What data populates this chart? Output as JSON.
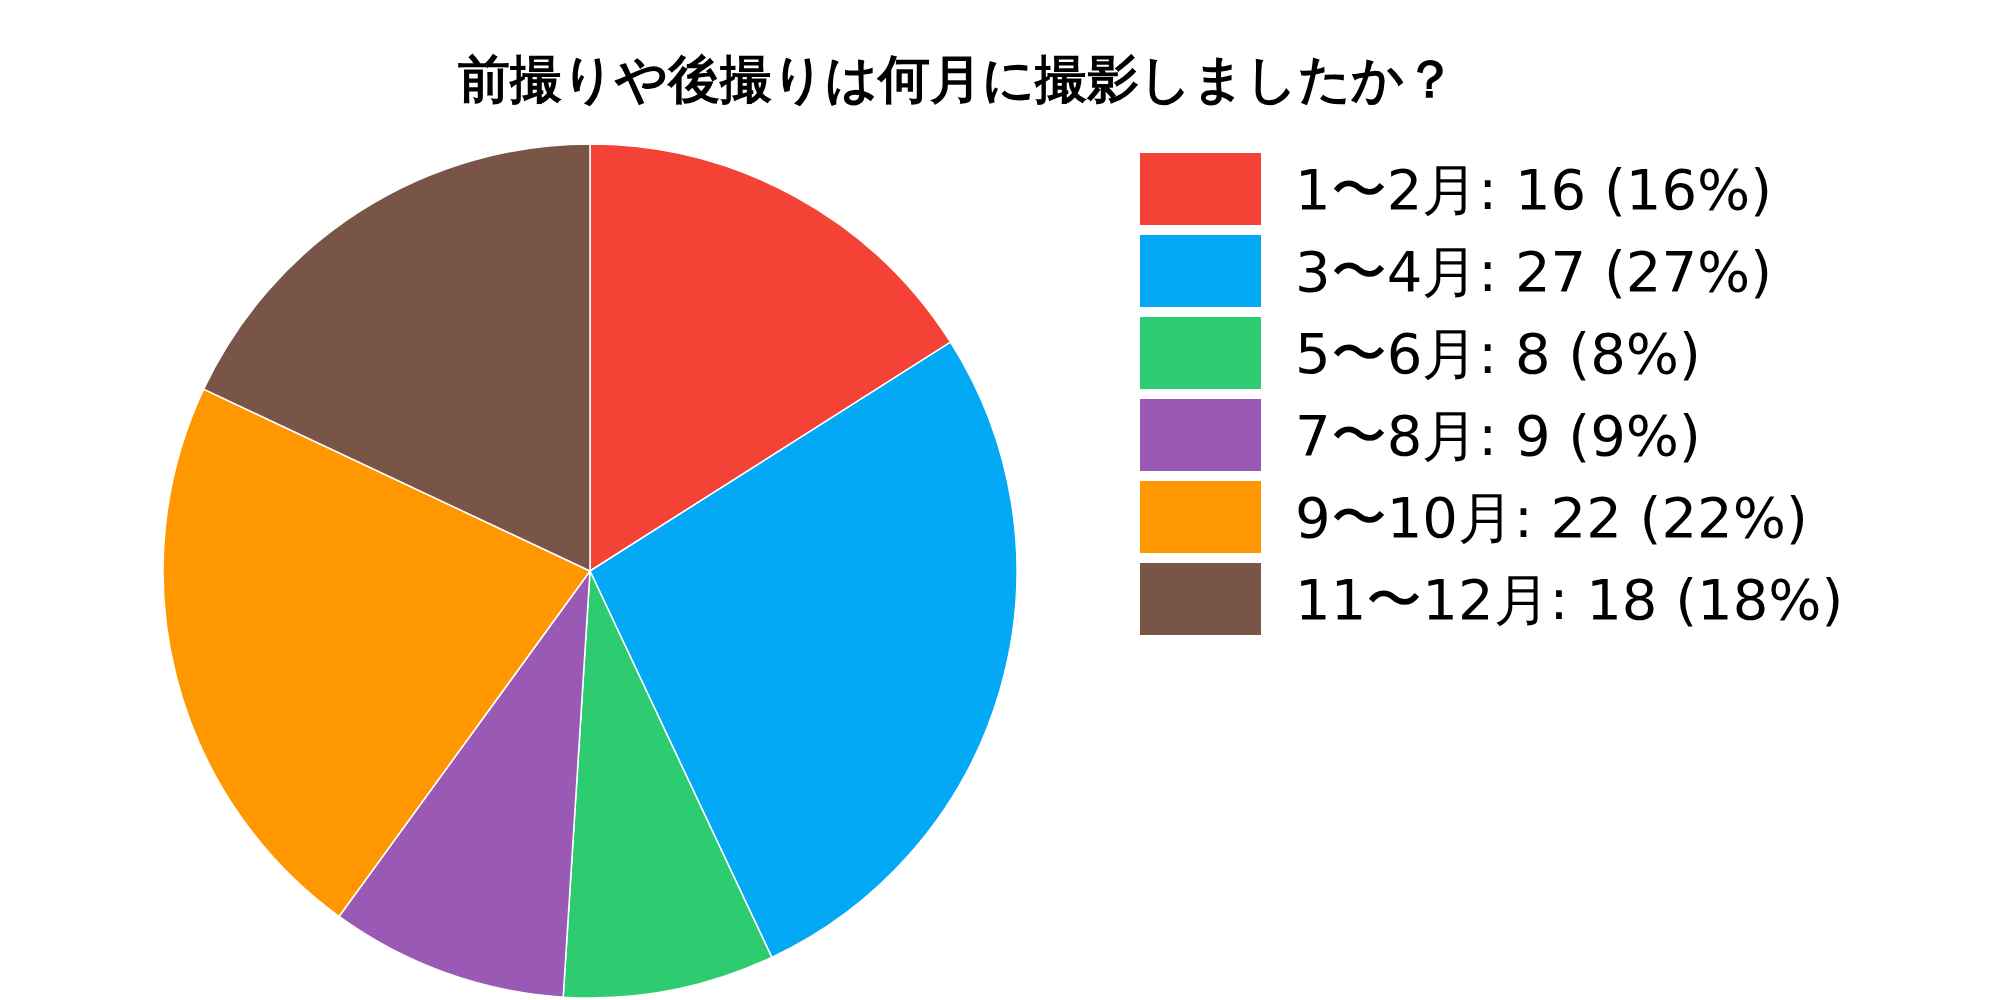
{
  "chart_data": {
    "type": "pie",
    "title": "前撮りや後撮りは何月に撮影しましたか？",
    "categories": [
      "1〜2月",
      "3〜4月",
      "5〜6月",
      "7〜8月",
      "9〜10月",
      "11〜12月"
    ],
    "values": [
      16,
      27,
      8,
      9,
      22,
      18
    ],
    "value_labels": [
      "16 (16%)",
      "27 (27%)",
      "8 (8%)",
      "9 (9%)",
      "22 (22%)",
      "18 (18%)"
    ],
    "colors": [
      "#f44336",
      "#03a9f4",
      "#2ecc71",
      "#9b59b6",
      "#ff9800",
      "#795548"
    ],
    "legend": "right"
  }
}
